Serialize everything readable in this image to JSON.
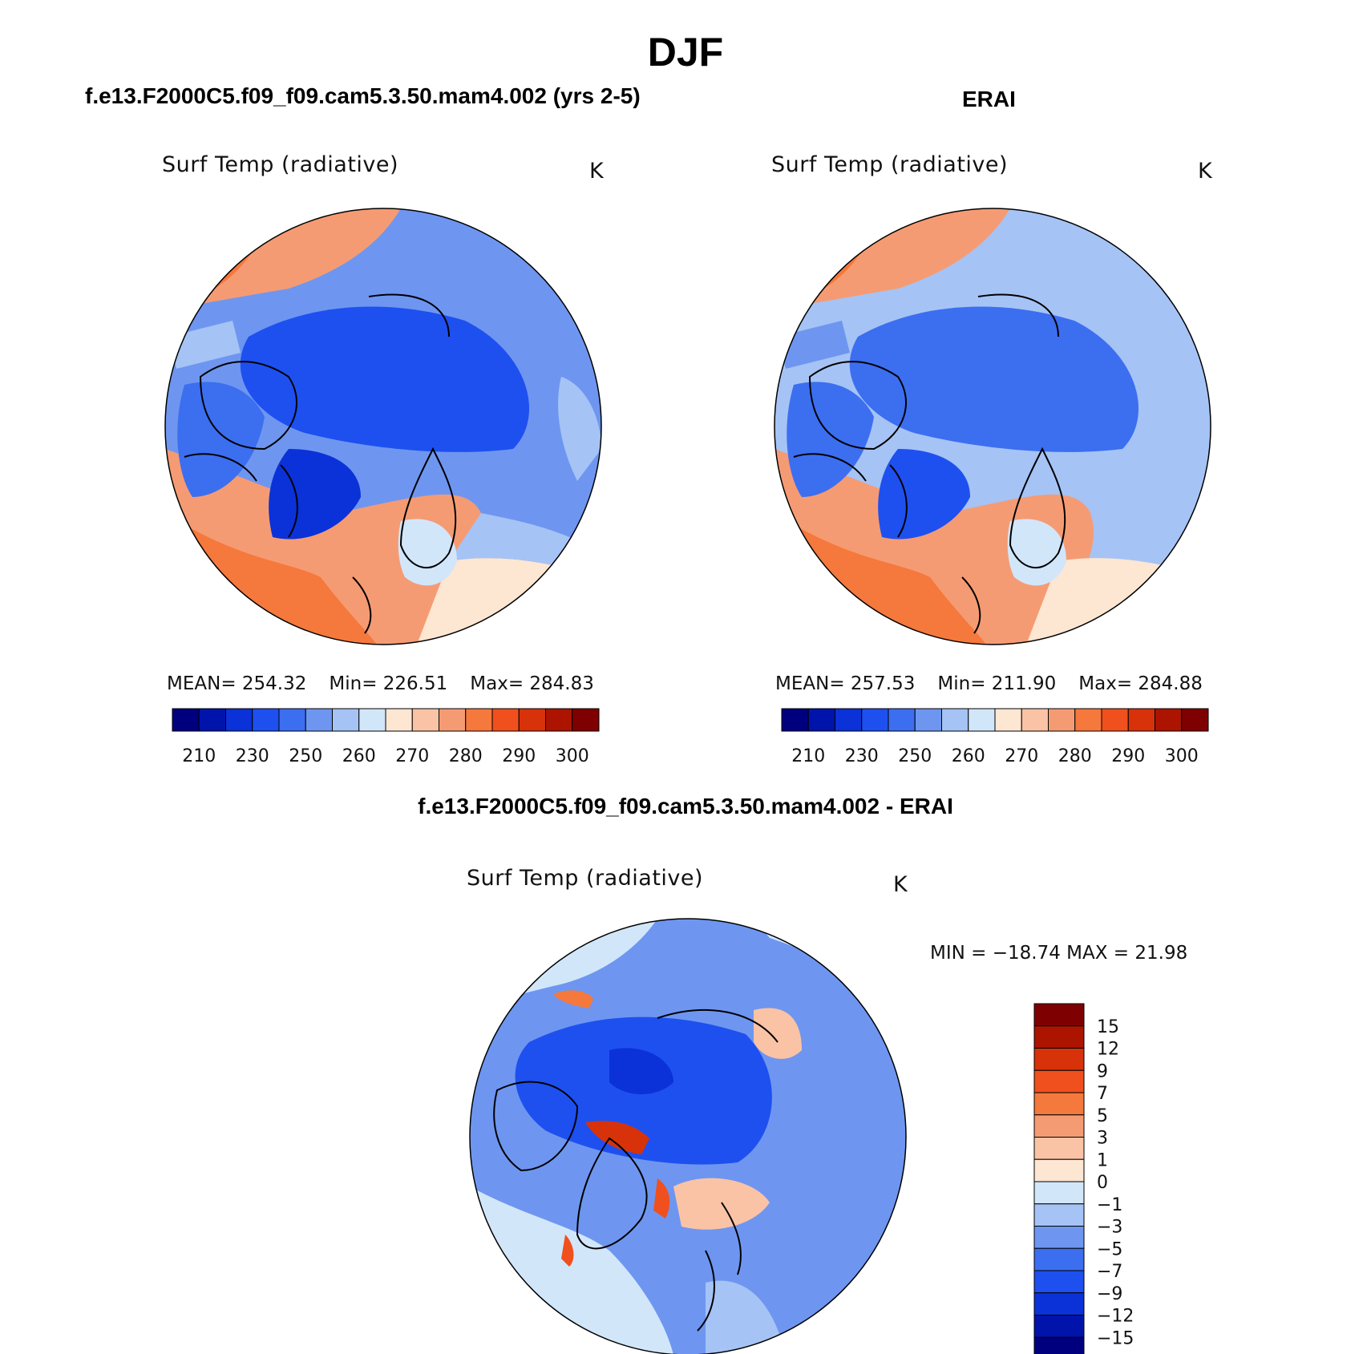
{
  "title": "DJF",
  "panels": {
    "model": {
      "title": "f.e13.F2000C5.f09_f09.cam5.3.50.mam4.002 (yrs 2-5)",
      "field": "Surf Temp (radiative)",
      "units": "K",
      "mean": "MEAN= 254.32",
      "min": "Min= 226.51",
      "max": "Max= 284.83"
    },
    "obs": {
      "title": "ERAI",
      "field": "Surf Temp (radiative)",
      "units": "K",
      "mean": "MEAN= 257.53",
      "min": "Min= 211.90",
      "max": "Max= 284.88"
    },
    "diff": {
      "title": "f.e13.F2000C5.f09_f09.cam5.3.50.mam4.002 - ERAI",
      "field": "Surf Temp (radiative)",
      "units": "K",
      "minmax": "MIN = −18.74 MAX =   21.98"
    }
  },
  "abs_colorbar": {
    "labels": [
      "210",
      "230",
      "250",
      "260",
      "270",
      "280",
      "290",
      "300"
    ],
    "colors": [
      "#00007f",
      "#0014ac",
      "#0a32d8",
      "#1e50f0",
      "#3c6ef0",
      "#6e96f0",
      "#a5c3f5",
      "#d2e6fa",
      "#fde6d2",
      "#fac3a5",
      "#f59b73",
      "#f5783c",
      "#f0501e",
      "#d8320a",
      "#ac1400",
      "#7f0000"
    ]
  },
  "diff_colorbar": {
    "labels": [
      "15",
      "12",
      "9",
      "7",
      "5",
      "3",
      "1",
      "0",
      "−1",
      "−3",
      "−5",
      "−7",
      "−9",
      "−12",
      "−15"
    ],
    "colors": [
      "#7f0000",
      "#ac1400",
      "#d8320a",
      "#f0501e",
      "#f5783c",
      "#f59b73",
      "#fac3a5",
      "#fde6d2",
      "#d2e6fa",
      "#a5c3f5",
      "#6e96f0",
      "#3c6ef0",
      "#1e50f0",
      "#0a32d8",
      "#0014ac",
      "#00007f"
    ]
  }
}
